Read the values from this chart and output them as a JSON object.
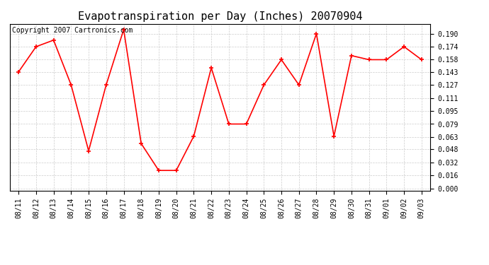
{
  "title": "Evapotranspiration per Day (Inches) 20070904",
  "copyright_text": "Copyright 2007 Cartronics.com",
  "x_labels": [
    "08/11",
    "08/12",
    "08/13",
    "08/14",
    "08/15",
    "08/16",
    "08/17",
    "08/18",
    "08/19",
    "08/20",
    "08/21",
    "08/22",
    "08/23",
    "08/24",
    "08/25",
    "08/26",
    "08/27",
    "08/28",
    "08/29",
    "08/30",
    "08/31",
    "09/01",
    "09/02",
    "09/03"
  ],
  "y_values": [
    0.143,
    0.174,
    0.182,
    0.127,
    0.046,
    0.127,
    0.195,
    0.055,
    0.022,
    0.022,
    0.064,
    0.148,
    0.079,
    0.079,
    0.127,
    0.158,
    0.127,
    0.19,
    0.064,
    0.163,
    0.158,
    0.158,
    0.174,
    0.158
  ],
  "y_ticks": [
    0.0,
    0.016,
    0.032,
    0.048,
    0.063,
    0.079,
    0.095,
    0.111,
    0.127,
    0.143,
    0.158,
    0.174,
    0.19
  ],
  "line_color": "#ff0000",
  "marker": "+",
  "bg_color": "#ffffff",
  "grid_color": "#cccccc",
  "title_fontsize": 11,
  "copyright_fontsize": 7,
  "tick_fontsize": 7,
  "figwidth": 6.9,
  "figheight": 3.75,
  "dpi": 100
}
